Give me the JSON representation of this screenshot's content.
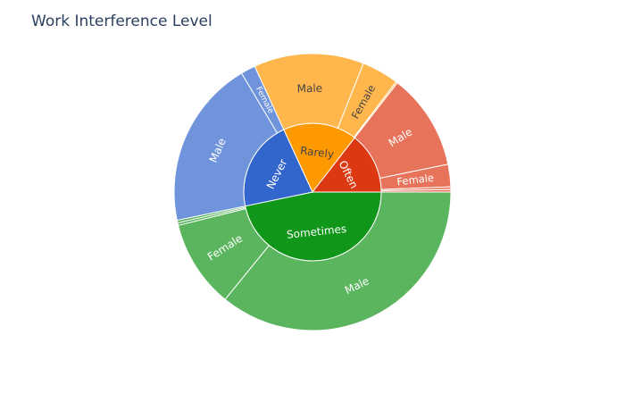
{
  "chart_data": {
    "type": "sunburst",
    "title": "Work Interference Level",
    "rings": [
      "work_interfere",
      "gender"
    ],
    "nodes": [
      {
        "label": "Sometimes",
        "value": 465,
        "color": "#109618",
        "children": [
          {
            "label": "Male",
            "value": 357,
            "color": "#5ab55e"
          },
          {
            "label": "Female",
            "value": 102,
            "color": "#5ab55e"
          },
          {
            "label": "",
            "value": 3,
            "color": "#5ab55e"
          },
          {
            "label": "",
            "value": 3,
            "color": "#5ab55e"
          }
        ]
      },
      {
        "label": "Never",
        "value": 213,
        "color": "#3366cc",
        "children": [
          {
            "label": "Male",
            "value": 196,
            "color": "#6f94db"
          },
          {
            "label": "Female",
            "value": 17,
            "color": "#6f94db"
          }
        ]
      },
      {
        "label": "Rarely",
        "value": 173,
        "color": "#ff9900",
        "children": [
          {
            "label": "Male",
            "value": 128,
            "color": "#ffb74d"
          },
          {
            "label": "Female",
            "value": 43,
            "color": "#ffb74d"
          },
          {
            "label": "",
            "value": 2,
            "color": "#ffb74d"
          }
        ]
      },
      {
        "label": "Often",
        "value": 144,
        "color": "#dc3912",
        "children": [
          {
            "label": "Male",
            "value": 112,
            "color": "#e8735b"
          },
          {
            "label": "Female",
            "value": 26,
            "color": "#e8735b"
          },
          {
            "label": "",
            "value": 3,
            "color": "#e8735b"
          },
          {
            "label": "",
            "value": 3,
            "color": "#e8735b"
          }
        ]
      }
    ]
  }
}
